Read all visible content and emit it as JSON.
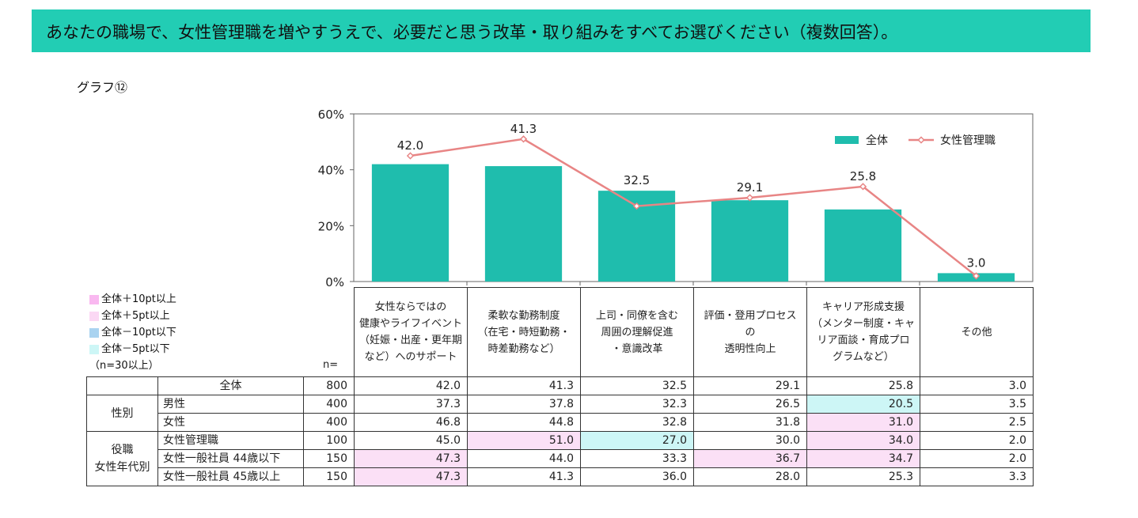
{
  "header": {
    "title": "あなたの職場で、女性管理職を増やすうえで、必要だと思う改革・取り組みをすべてお選びください（複数回答）。"
  },
  "graph_label": "グラフ⑫",
  "legend_key": [
    {
      "label": "全体＋10pt以上",
      "color": "#f9b8f0"
    },
    {
      "label": "全体＋5pt以上",
      "color": "#fbd8f4"
    },
    {
      "label": "全体－10pt以下",
      "color": "#a9d3f0"
    },
    {
      "label": "全体－5pt以下",
      "color": "#cdf6f6"
    }
  ],
  "legend_note": "（n=30以上）",
  "n_label": "n=",
  "chart_data": {
    "type": "bar",
    "categories": [
      "女性ならではの健康やライフイベント（妊娠・出産・更年期など）へのサポート",
      "柔軟な勤務制度（在宅・時短勤務・時差勤務など）",
      "上司・同僚を含む周囲の理解促進・意識改革",
      "評価・登用プロセスの透明性向上",
      "キャリア形成支援（メンター制度・キャリア面談・育成プログラムなど）",
      "その他"
    ],
    "series": [
      {
        "name": "全体",
        "type": "bar",
        "color": "#1fbdad",
        "values": [
          42.0,
          41.3,
          32.5,
          29.1,
          25.8,
          3.0
        ]
      },
      {
        "name": "女性管理職",
        "type": "line",
        "color": "#e88585",
        "values": [
          45.0,
          51.0,
          27.0,
          30.0,
          34.0,
          2.0
        ]
      }
    ],
    "data_labels": [
      "42.0",
      "41.3",
      "32.5",
      "29.1",
      "25.8",
      "3.0"
    ],
    "y_ticks": [
      "0%",
      "20%",
      "40%",
      "60%"
    ],
    "ylim": [
      0,
      60
    ]
  },
  "table": {
    "headers": [
      [
        "女性ならではの",
        "健康やライフイベント",
        "（妊娠・出産・更年期",
        "など）へのサポート"
      ],
      [
        "柔軟な勤務制度",
        "（在宅・時短勤務・",
        "時差勤務など）"
      ],
      [
        "上司・同僚を含む",
        "周囲の理解促進",
        "・意識改革"
      ],
      [
        "評価・登用プロセス",
        "の",
        "透明性向上"
      ],
      [
        "キャリア形成支援",
        "（メンター制度・キャ",
        "リア面談・育成プロ",
        "グラムなど）"
      ],
      [
        "その他"
      ]
    ],
    "rows": [
      {
        "group": "",
        "label": "全体",
        "n": "800",
        "values": [
          "42.0",
          "41.3",
          "32.5",
          "29.1",
          "25.8",
          "3.0"
        ],
        "highlights": [
          "",
          "",
          "",
          "",
          "",
          ""
        ]
      },
      {
        "group": "性別",
        "label": "男性",
        "n": "400",
        "values": [
          "37.3",
          "37.8",
          "32.3",
          "26.5",
          "20.5",
          "3.5"
        ],
        "highlights": [
          "",
          "",
          "",
          "",
          "neg5",
          ""
        ]
      },
      {
        "group": "",
        "label": "女性",
        "n": "400",
        "values": [
          "46.8",
          "44.8",
          "32.8",
          "31.8",
          "31.0",
          "2.5"
        ],
        "highlights": [
          "",
          "",
          "",
          "",
          "pos5",
          ""
        ]
      },
      {
        "group": "役職\n女性年代別",
        "label": "女性管理職",
        "n": "100",
        "values": [
          "45.0",
          "51.0",
          "27.0",
          "30.0",
          "34.0",
          "2.0"
        ],
        "highlights": [
          "",
          "pos5",
          "neg5",
          "",
          "pos5",
          ""
        ]
      },
      {
        "group": "",
        "label": "女性一般社員 44歳以下",
        "n": "150",
        "values": [
          "47.3",
          "44.0",
          "33.3",
          "36.7",
          "34.7",
          "2.0"
        ],
        "highlights": [
          "pos5",
          "",
          "",
          "pos5",
          "pos5",
          ""
        ]
      },
      {
        "group": "",
        "label": "女性一般社員 45歳以上",
        "n": "150",
        "values": [
          "47.3",
          "41.3",
          "36.0",
          "28.0",
          "25.3",
          "3.3"
        ],
        "highlights": [
          "pos5",
          "",
          "",
          "",
          "",
          ""
        ]
      }
    ],
    "group_labels": [
      "性別",
      "役職",
      "女性年代別"
    ]
  }
}
